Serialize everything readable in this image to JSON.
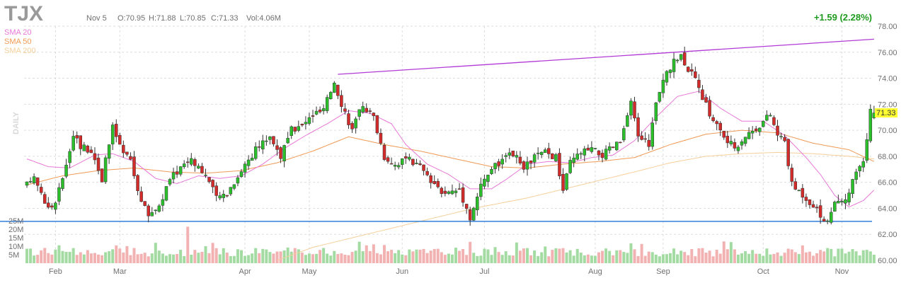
{
  "header": {
    "ticker": "TJX",
    "date": "Nov 5",
    "open": "O:70.95",
    "high": "H:71.88",
    "low": "L:70.85",
    "close": "C:71.33",
    "volume": "Vol:4.06M",
    "change": "+1.59 (2.28%)"
  },
  "colors": {
    "up": "#2bbf2b",
    "down": "#d32a2a",
    "vol_up": "#a3dba3",
    "vol_down": "#f2b2b2",
    "sma20": "#e878d8",
    "sma50": "#f09a55",
    "sma200": "#f5cf9a",
    "trendline": "#b23ad6",
    "support": "#2f7fd8",
    "grid": "#dddddd",
    "last_price_bg": "#ffff33"
  },
  "chart_data": {
    "type": "candlestick",
    "period_label": "DAILY",
    "last_price_label": "71.33",
    "y_ticks": [
      "78.00",
      "76.00",
      "74.00",
      "72.00",
      "70.00",
      "68.00",
      "66.00",
      "64.00",
      "62.00",
      "60.00"
    ],
    "ylim": [
      60,
      78
    ],
    "x_labels": [
      "Feb",
      "Mar",
      "Apr",
      "May",
      "Jun",
      "Jul",
      "Aug",
      "Sep",
      "Oct",
      "Nov"
    ],
    "legend": [
      {
        "label": "SMA 20",
        "color": "#e878d8"
      },
      {
        "label": "SMA 50",
        "color": "#f09a55"
      },
      {
        "label": "SMA 200",
        "color": "#f5cf9a"
      }
    ],
    "volume_ticks": [
      "25M",
      "20M",
      "15M",
      "10M",
      "5M"
    ],
    "volume_max": 25,
    "trendline": {
      "start": {
        "session": 87,
        "price": 74.3
      },
      "end": {
        "session": 237,
        "price": 77.0
      }
    },
    "support_level": 63.0,
    "sessions_total": 237,
    "price_keyframes": [
      [
        0,
        65.8
      ],
      [
        2,
        66.5
      ],
      [
        6,
        64.0
      ],
      [
        8,
        64.3
      ],
      [
        11,
        67.5
      ],
      [
        13,
        69.8
      ],
      [
        15,
        68.8
      ],
      [
        18,
        68.5
      ],
      [
        21,
        66.3
      ],
      [
        24,
        70.2
      ],
      [
        27,
        68.2
      ],
      [
        29,
        67.7
      ],
      [
        32,
        64.5
      ],
      [
        34,
        63.5
      ],
      [
        37,
        64.2
      ],
      [
        40,
        66.2
      ],
      [
        43,
        67.2
      ],
      [
        46,
        67.9
      ],
      [
        50,
        66.6
      ],
      [
        53,
        64.8
      ],
      [
        56,
        65.2
      ],
      [
        59,
        66.5
      ],
      [
        62,
        67.8
      ],
      [
        65,
        68.8
      ],
      [
        68,
        69.6
      ],
      [
        71,
        68.0
      ],
      [
        74,
        70.0
      ],
      [
        77,
        70.3
      ],
      [
        80,
        71.2
      ],
      [
        83,
        71.5
      ],
      [
        86,
        73.8
      ],
      [
        88,
        72.1
      ],
      [
        91,
        70.0
      ],
      [
        94,
        72.0
      ],
      [
        97,
        71.0
      ],
      [
        100,
        68.0
      ],
      [
        103,
        67.4
      ],
      [
        106,
        67.8
      ],
      [
        110,
        67.2
      ],
      [
        114,
        65.6
      ],
      [
        118,
        65.2
      ],
      [
        121,
        65.5
      ],
      [
        123,
        64.0
      ],
      [
        124,
        63.3
      ],
      [
        127,
        65.7
      ],
      [
        130,
        67.1
      ],
      [
        133,
        67.6
      ],
      [
        136,
        68.2
      ],
      [
        139,
        67.0
      ],
      [
        142,
        68.0
      ],
      [
        145,
        68.3
      ],
      [
        148,
        67.9
      ],
      [
        150,
        65.4
      ],
      [
        152,
        67.5
      ],
      [
        155,
        68.3
      ],
      [
        158,
        68.5
      ],
      [
        161,
        68.1
      ],
      [
        164,
        68.7
      ],
      [
        166,
        69.1
      ],
      [
        169,
        72.0
      ],
      [
        171,
        69.6
      ],
      [
        174,
        69.0
      ],
      [
        176,
        72.0
      ],
      [
        179,
        74.5
      ],
      [
        181,
        75.2
      ],
      [
        183,
        75.8
      ],
      [
        186,
        74.3
      ],
      [
        188,
        73.2
      ],
      [
        191,
        71.3
      ],
      [
        193,
        70.4
      ],
      [
        196,
        69.1
      ],
      [
        198,
        68.7
      ],
      [
        201,
        69.6
      ],
      [
        204,
        70.2
      ],
      [
        208,
        71.2
      ],
      [
        210,
        69.6
      ],
      [
        212,
        69.2
      ],
      [
        214,
        65.8
      ],
      [
        217,
        65.1
      ],
      [
        220,
        64.3
      ],
      [
        222,
        63.4
      ],
      [
        224,
        63.1
      ],
      [
        226,
        64.2
      ],
      [
        229,
        64.5
      ],
      [
        232,
        66.8
      ],
      [
        234,
        67.4
      ],
      [
        235,
        69.5
      ],
      [
        236,
        71.33
      ]
    ],
    "sma20_keyframes": [
      [
        0,
        67.8
      ],
      [
        6,
        67.2
      ],
      [
        12,
        67.1
      ],
      [
        19,
        68.1
      ],
      [
        24,
        68.2
      ],
      [
        30,
        67.6
      ],
      [
        36,
        66.3
      ],
      [
        42,
        65.9
      ],
      [
        48,
        66.5
      ],
      [
        54,
        66.3
      ],
      [
        60,
        66.5
      ],
      [
        66,
        67.4
      ],
      [
        72,
        68.6
      ],
      [
        78,
        69.6
      ],
      [
        84,
        70.5
      ],
      [
        90,
        71.5
      ],
      [
        96,
        71.3
      ],
      [
        102,
        70.5
      ],
      [
        106,
        68.9
      ],
      [
        112,
        67.4
      ],
      [
        118,
        66.6
      ],
      [
        124,
        65.5
      ],
      [
        130,
        65.5
      ],
      [
        134,
        66.2
      ],
      [
        140,
        67.4
      ],
      [
        146,
        67.6
      ],
      [
        152,
        67.5
      ],
      [
        158,
        67.9
      ],
      [
        164,
        68.1
      ],
      [
        170,
        69.2
      ],
      [
        176,
        71.0
      ],
      [
        182,
        72.6
      ],
      [
        188,
        73.0
      ],
      [
        194,
        71.7
      ],
      [
        200,
        70.7
      ],
      [
        206,
        70.7
      ],
      [
        212,
        69.6
      ],
      [
        218,
        67.9
      ],
      [
        222,
        66.6
      ],
      [
        226,
        65.0
      ],
      [
        230,
        64.1
      ],
      [
        234,
        64.6
      ],
      [
        237,
        65.4
      ]
    ],
    "sma50_keyframes": [
      [
        0,
        65.8
      ],
      [
        10,
        66.5
      ],
      [
        20,
        66.9
      ],
      [
        30,
        67.1
      ],
      [
        40,
        66.8
      ],
      [
        50,
        66.7
      ],
      [
        60,
        66.9
      ],
      [
        70,
        67.5
      ],
      [
        80,
        68.4
      ],
      [
        90,
        69.5
      ],
      [
        100,
        68.9
      ],
      [
        110,
        68.4
      ],
      [
        120,
        67.8
      ],
      [
        130,
        67.2
      ],
      [
        140,
        67.1
      ],
      [
        150,
        67.4
      ],
      [
        160,
        67.6
      ],
      [
        170,
        67.9
      ],
      [
        180,
        68.9
      ],
      [
        190,
        69.7
      ],
      [
        200,
        70.0
      ],
      [
        210,
        69.8
      ],
      [
        220,
        69.0
      ],
      [
        230,
        68.5
      ],
      [
        237,
        67.6
      ]
    ],
    "sma200_keyframes": [
      [
        70,
        60.0
      ],
      [
        80,
        61.0
      ],
      [
        95,
        62.0
      ],
      [
        110,
        63.0
      ],
      [
        125,
        64.0
      ],
      [
        140,
        64.8
      ],
      [
        155,
        65.8
      ],
      [
        170,
        66.8
      ],
      [
        180,
        67.5
      ],
      [
        190,
        68.0
      ],
      [
        200,
        68.2
      ],
      [
        210,
        68.3
      ],
      [
        220,
        68.2
      ],
      [
        230,
        68.0
      ],
      [
        237,
        67.8
      ]
    ]
  }
}
